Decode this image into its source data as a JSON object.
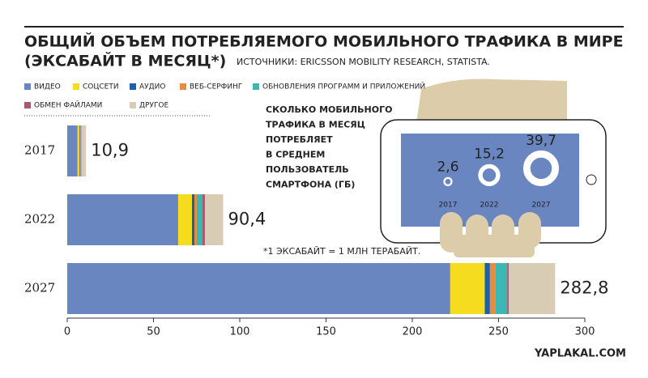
{
  "chart_data": [
    {
      "type": "bar",
      "title": [
        "ОБЩИЙ ОБЪЕМ ПОТРЕБЛЯЕМОГО МОБИЛЬНОГО ТРАФИКА В МИРЕ",
        "(ЭКСАБАЙТ В МЕСЯЦ*)"
      ],
      "source": "ИСТОЧНИКИ: ERICSSON MOBILITY RESEARCH, STATISTA.",
      "note": "*1 ЭКСАБАЙТ = 1 МЛН ТЕРАБАЙТ.",
      "watermark": "YAPLAKAL.COM",
      "categories": [
        "2017",
        "2022",
        "2027"
      ],
      "series": [
        {
          "name": "ВИДЕО",
          "color": "#6a86c0",
          "values": [
            6,
            64.3,
            222
          ]
        },
        {
          "name": "СОЦСЕТИ",
          "color": "#f5dc1e",
          "values": [
            1,
            8,
            20
          ]
        },
        {
          "name": "АУДИО",
          "color": "#1d5fa8",
          "values": [
            0.3,
            1.4,
            3
          ]
        },
        {
          "name": "ВЕБ-СЕРФИНГ",
          "color": "#e98b3a",
          "values": [
            0.3,
            1.4,
            3
          ]
        },
        {
          "name": "ОБНОВЛЕНИЯ ПРОГРАММ И ПРИЛОЖЕНИЙ",
          "color": "#3bb8b4",
          "values": [
            0.5,
            3.3,
            7
          ]
        },
        {
          "name": "ОБМЕН ФАЙЛАМИ",
          "color": "#a85a6a",
          "values": [
            0.2,
            1.4,
            1
          ]
        },
        {
          "name": "ДРУГОЕ",
          "color": "#d9ccb4",
          "values": [
            2.6,
            10.6,
            26.8
          ]
        }
      ],
      "totals": [
        10.9,
        90.4,
        282.8
      ],
      "value_labels": [
        "10,9",
        "90,4",
        "282,8"
      ],
      "xlim": [
        0,
        300
      ],
      "xticks": [
        0,
        50,
        100,
        150,
        200,
        250,
        300
      ]
    },
    {
      "type": "ring",
      "title": [
        "СКОЛЬКО МОБИЛЬНОГО",
        "ТРАФИКА В МЕСЯЦ",
        "ПОТРЕБЛЯЕТ",
        "В СРЕДНЕМ",
        "ПОЛЬЗОВАТЕЛЬ",
        "СМАРТФОНА (ГБ)"
      ],
      "categories": [
        "2017",
        "2022",
        "2027"
      ],
      "values": [
        2.6,
        15.2,
        39.7
      ],
      "value_labels": [
        "2,6",
        "15,2",
        "39,7"
      ],
      "color": "#ffffff"
    }
  ]
}
